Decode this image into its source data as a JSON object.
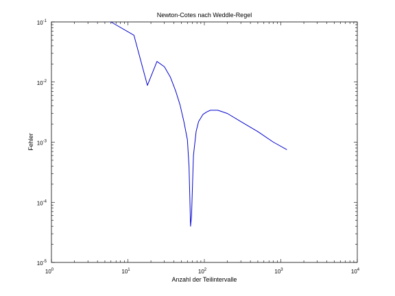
{
  "chart_data": {
    "type": "line",
    "title": "Newton-Cotes nach Weddle-Regel",
    "xlabel": "Anzahl der Teilintervalle",
    "ylabel": "Fehler",
    "xscale": "log",
    "yscale": "log",
    "xlim": [
      1,
      10000
    ],
    "ylim": [
      1e-05,
      0.1
    ],
    "x_ticks": [
      {
        "base": "10",
        "exp": "0"
      },
      {
        "base": "10",
        "exp": "1"
      },
      {
        "base": "10",
        "exp": "2"
      },
      {
        "base": "10",
        "exp": "3"
      },
      {
        "base": "10",
        "exp": "4"
      }
    ],
    "y_ticks": [
      {
        "base": "10",
        "exp": "-5"
      },
      {
        "base": "10",
        "exp": "-4"
      },
      {
        "base": "10",
        "exp": "-3"
      },
      {
        "base": "10",
        "exp": "-2"
      },
      {
        "base": "10",
        "exp": "-1"
      }
    ],
    "grid": false,
    "series": [
      {
        "color": "#0000cc",
        "x": [
          6,
          12,
          18,
          24,
          30,
          36,
          42,
          48,
          54,
          60,
          63,
          66,
          68,
          72,
          78,
          84,
          96,
          108,
          120,
          150,
          200,
          300,
          500,
          800,
          1200
        ],
        "y": [
          0.1,
          0.06,
          0.0088,
          0.022,
          0.018,
          0.012,
          0.0072,
          0.0042,
          0.0022,
          0.0011,
          0.0004,
          4e-05,
          6e-05,
          0.0006,
          0.0015,
          0.0022,
          0.0029,
          0.0032,
          0.0034,
          0.0034,
          0.003,
          0.0022,
          0.0015,
          0.001,
          0.00075
        ]
      }
    ]
  }
}
